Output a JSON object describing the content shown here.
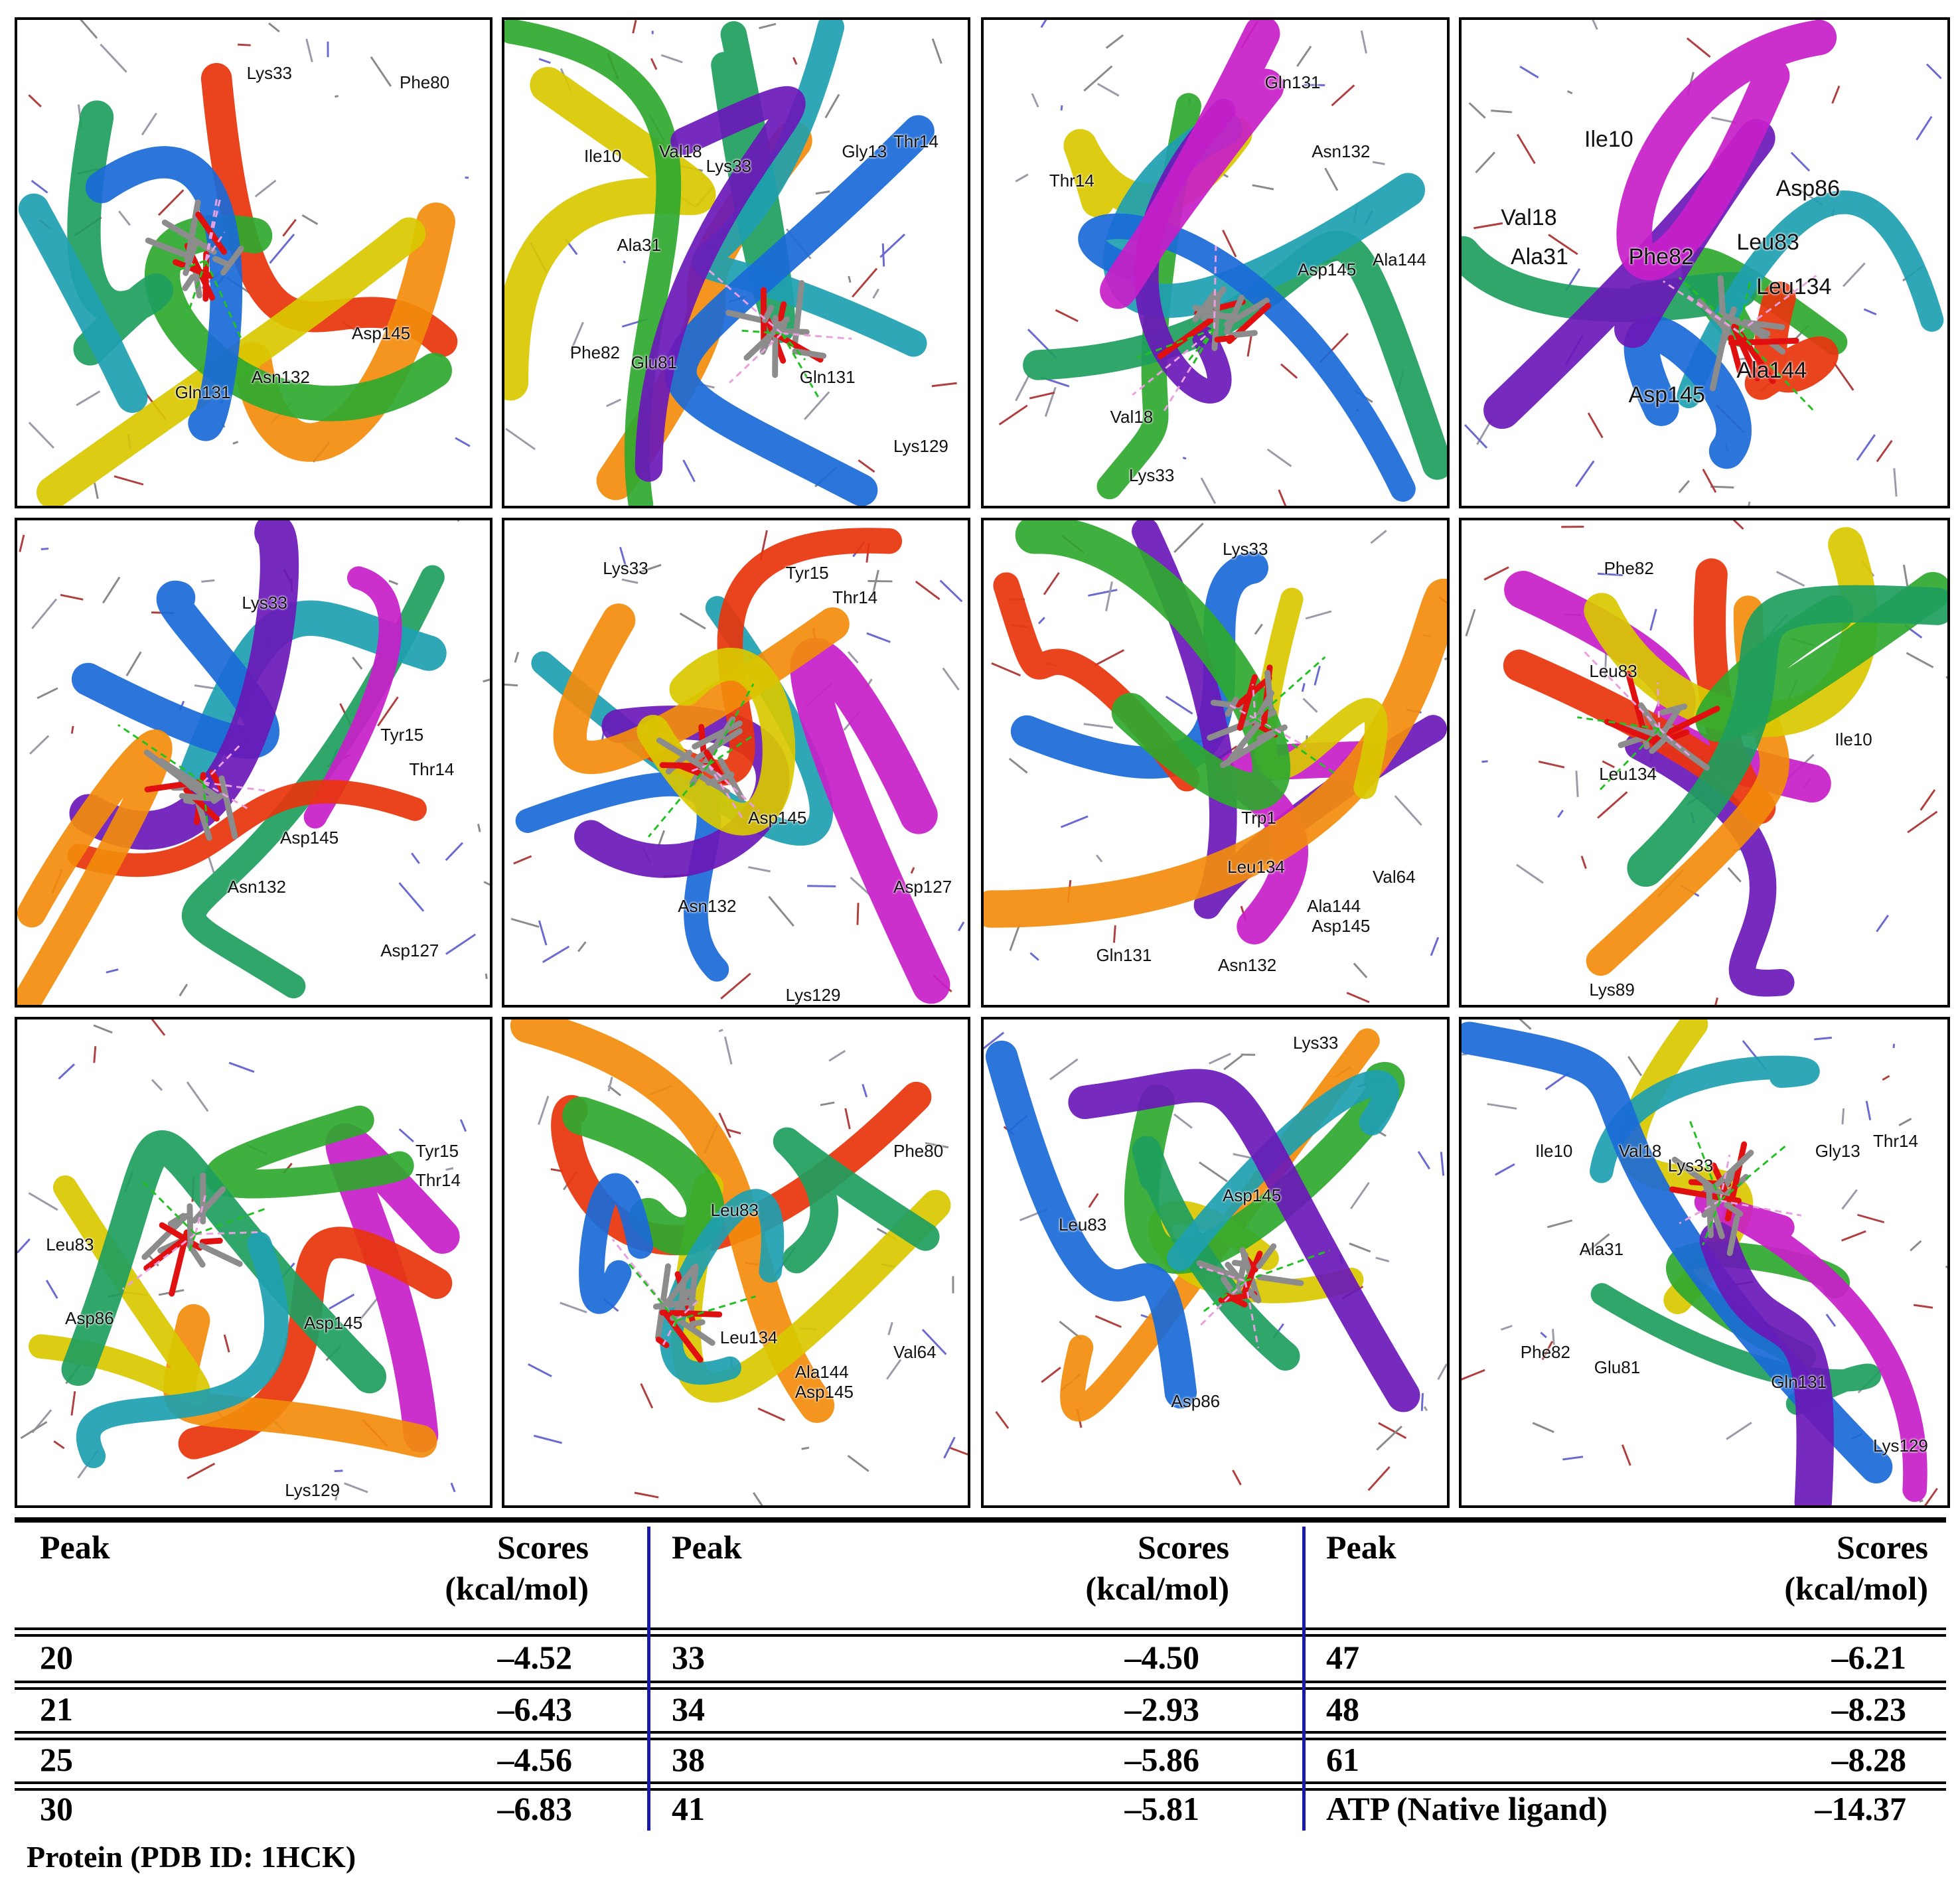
{
  "panels": [
    {
      "labels": [
        "Lys33",
        "Phe80",
        "Asp145",
        "Gln131",
        "Asn132"
      ]
    },
    {
      "labels": [
        "Ile10",
        "Val18",
        "Lys33",
        "Gly13",
        "Thr14",
        "Ala31",
        "Phe82",
        "Glu81",
        "Gln131",
        "Lys129"
      ]
    },
    {
      "labels": [
        "Gln131",
        "Asn132",
        "Thr14",
        "Asp145",
        "Ala144",
        "Val18",
        "Lys33"
      ]
    },
    {
      "labels": [
        "Ile10",
        "Val18",
        "Ala31",
        "Phe82",
        "Leu83",
        "Asp86",
        "Leu134",
        "Ala144",
        "Asp145"
      ]
    },
    {
      "labels": [
        "Lys33",
        "Tyr15",
        "Thr14",
        "Asp145",
        "Asn132",
        "Asp127"
      ]
    },
    {
      "labels": [
        "Lys33",
        "Tyr15",
        "Thr14",
        "Asp145",
        "Asn132",
        "Asp127",
        "Lys129"
      ]
    },
    {
      "labels": [
        "Lys33",
        "Trp1",
        "Val64",
        "Leu134",
        "Ala144",
        "Asp145",
        "Gln131",
        "Asn132"
      ]
    },
    {
      "labels": [
        "Phe82",
        "Leu83",
        "Ile10",
        "Leu134",
        "Lys89"
      ]
    },
    {
      "labels": [
        "Tyr15",
        "Thr14",
        "Leu83",
        "Asp86",
        "Asp145",
        "Lys129"
      ]
    },
    {
      "labels": [
        "Phe80",
        "Leu83",
        "Val64",
        "Leu134",
        "Ala144",
        "Asp145"
      ]
    },
    {
      "labels": [
        "Lys33",
        "Asp145",
        "Leu83",
        "Asp86"
      ]
    },
    {
      "labels": [
        "Ile10",
        "Val18",
        "Lys33",
        "Gly13",
        "Thr14",
        "Ala31",
        "Phe82",
        "Glu81",
        "Gln131",
        "Lys129"
      ]
    }
  ],
  "table": {
    "header_peak": "Peak",
    "header_scores_line1": "Scores",
    "header_scores_line2": "(kcal/mol)",
    "groups": [
      {
        "rows": [
          {
            "peak": "20",
            "score": "–4.52"
          },
          {
            "peak": "21",
            "score": "–6.43"
          },
          {
            "peak": "25",
            "score": "–4.56"
          },
          {
            "peak": "30",
            "score": "–6.83"
          }
        ]
      },
      {
        "rows": [
          {
            "peak": "33",
            "score": "–4.50"
          },
          {
            "peak": "34",
            "score": "–2.93"
          },
          {
            "peak": "38",
            "score": "–5.86"
          },
          {
            "peak": "41",
            "score": "–5.81"
          }
        ]
      },
      {
        "rows": [
          {
            "peak": "47",
            "score": "–6.21"
          },
          {
            "peak": "48",
            "score": "–8.23"
          },
          {
            "peak": "61",
            "score": "–8.28"
          },
          {
            "peak": "ATP (Native ligand)",
            "score": "–14.37"
          }
        ]
      }
    ],
    "caption": "Protein (PDB ID: 1HCK)"
  },
  "colors": {
    "ribbon_palette": [
      "#e8340c",
      "#f28c0c",
      "#d9c800",
      "#2fa82f",
      "#1e9e5e",
      "#1ea0b0",
      "#1a6ad8",
      "#6a18b8",
      "#c81ec8"
    ],
    "divider": "#1a1aa8"
  }
}
